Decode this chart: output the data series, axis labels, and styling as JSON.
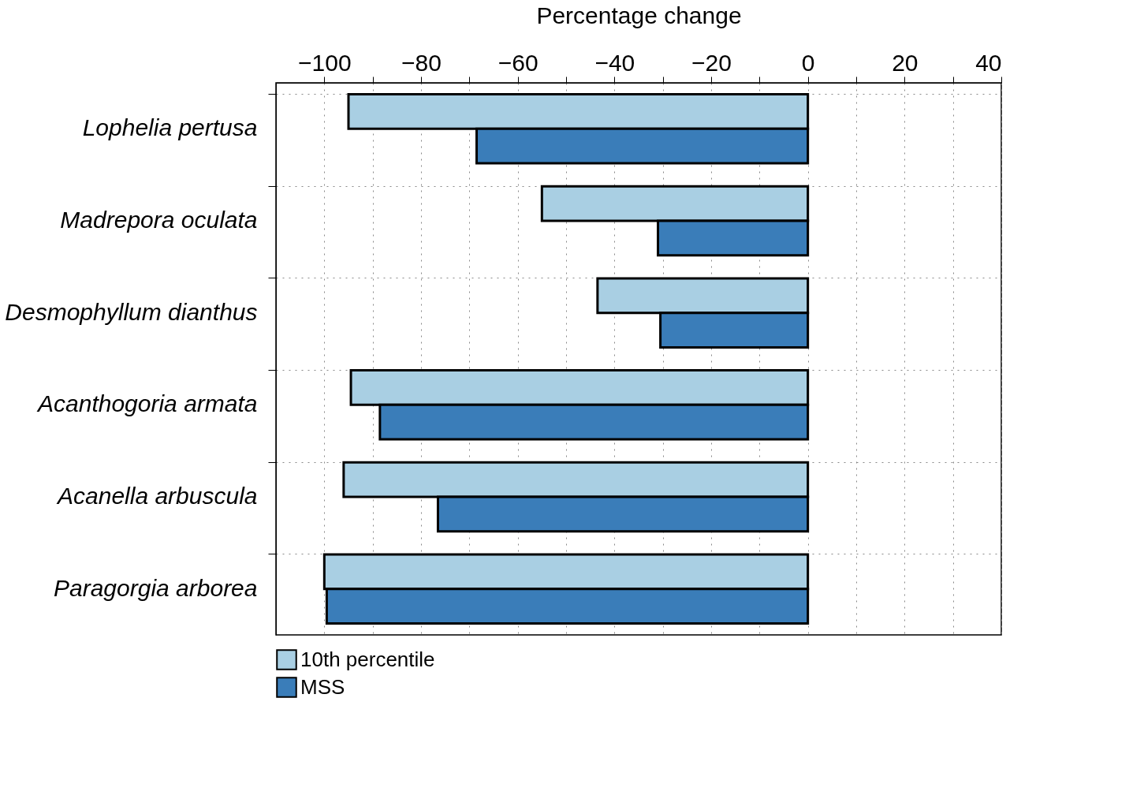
{
  "chart_data": {
    "type": "bar",
    "orientation": "horizontal",
    "xlabel": "Percentage change",
    "categories": [
      "Lophelia pertusa",
      "Madrepora oculata",
      "Desmophyllum dianthus",
      "Acanthogoria armata",
      "Acanella arbuscula",
      "Paragorgia arborea"
    ],
    "series": [
      {
        "name": "10th percentile",
        "color": "#a9cfe3",
        "values": [
          -95,
          -55,
          -43.5,
          -94.5,
          -96,
          -100
        ]
      },
      {
        "name": "MSS",
        "color": "#3a7db9",
        "values": [
          -68.5,
          -31,
          -30.5,
          -88.5,
          -76.5,
          -99.5
        ]
      }
    ],
    "xlim": [
      -110,
      40
    ],
    "xticks": [
      {
        "value": -100,
        "label": "−100"
      },
      {
        "value": -90,
        "label": null
      },
      {
        "value": -80,
        "label": "−80"
      },
      {
        "value": -70,
        "label": null
      },
      {
        "value": -60,
        "label": "−60"
      },
      {
        "value": -50,
        "label": null
      },
      {
        "value": -40,
        "label": "−40"
      },
      {
        "value": -30,
        "label": null
      },
      {
        "value": -20,
        "label": "−20"
      },
      {
        "value": -10,
        "label": null
      },
      0,
      {
        "value": 10,
        "label": null
      },
      20,
      {
        "value": 30,
        "label": null
      },
      40
    ],
    "grid": true,
    "legend": "bottom"
  }
}
